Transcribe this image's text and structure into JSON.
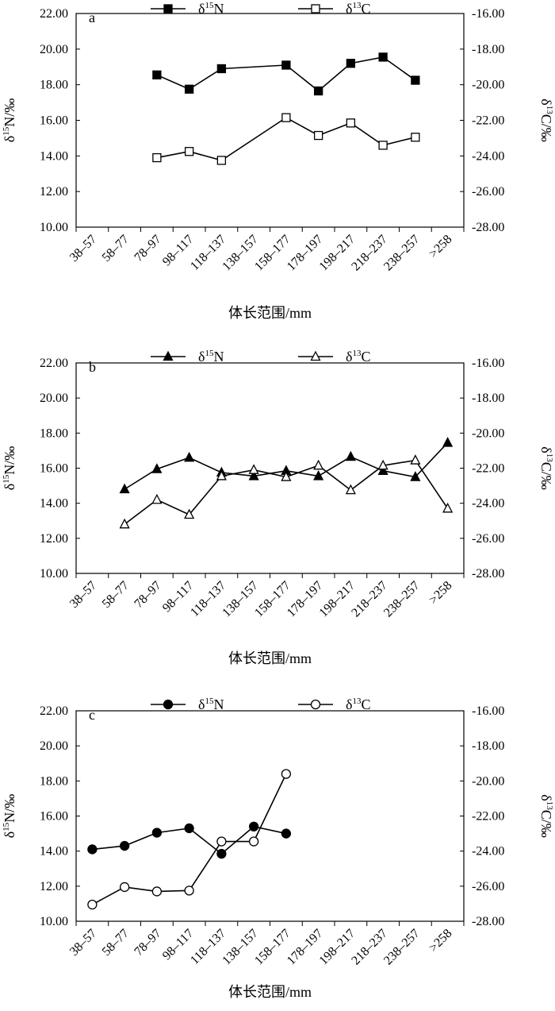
{
  "chart_data": [
    {
      "panel": "a",
      "type": "line",
      "categories": [
        "38–57",
        "58–77",
        "78–97",
        "98–117",
        "118–137",
        "138–157",
        "158–177",
        "178–197",
        "198–217",
        "218–237",
        "238–257",
        ">258"
      ],
      "xlabel": "体长范围/mm",
      "ylabel_left": {
        "symbol": "δ",
        "sup": "15",
        "rest": "N/‰"
      },
      "ylabel_right": {
        "symbol": "δ",
        "sup": "13",
        "rest": "C/‰"
      },
      "ylim_left": [
        10,
        22
      ],
      "ylim_right": [
        -28,
        -16
      ],
      "yticks_left": [
        "10.00",
        "12.00",
        "14.00",
        "16.00",
        "18.00",
        "20.00",
        "22.00"
      ],
      "yticks_right": [
        "-28.00",
        "-26.00",
        "-24.00",
        "-22.00",
        "-20.00",
        "-18.00",
        "-16.00"
      ],
      "legend_position": "top",
      "series": [
        {
          "name": "δ15N",
          "label": {
            "symbol": "δ",
            "sup": "15",
            "rest": "N"
          },
          "axis": "left",
          "marker": "square",
          "filled": true,
          "x": [
            "78–97",
            "98–117",
            "118–137",
            "158–177",
            "178–197",
            "198–217",
            "218–237",
            "238–257"
          ],
          "values": [
            18.55,
            17.75,
            18.9,
            19.1,
            17.65,
            19.2,
            19.55,
            18.25
          ]
        },
        {
          "name": "δ13C",
          "label": {
            "symbol": "δ",
            "sup": "13",
            "rest": "C"
          },
          "axis": "right",
          "marker": "square",
          "filled": false,
          "x": [
            "78–97",
            "98–117",
            "118–137",
            "158–177",
            "178–197",
            "198–217",
            "218–237",
            "238–257"
          ],
          "values": [
            -24.1,
            -23.75,
            -24.25,
            -21.85,
            -22.85,
            -22.15,
            -23.4,
            -22.95
          ]
        }
      ]
    },
    {
      "panel": "b",
      "type": "line",
      "categories": [
        "38–57",
        "58–77",
        "78–97",
        "98–117",
        "118–137",
        "138–157",
        "158–177",
        "178–197",
        "198–217",
        "218–237",
        "238–257",
        ">258"
      ],
      "xlabel": "体长范围/mm",
      "ylabel_left": {
        "symbol": "δ",
        "sup": "15",
        "rest": "N/‰"
      },
      "ylabel_right": {
        "symbol": "δ",
        "sup": "13",
        "rest": "C/‰"
      },
      "ylim_left": [
        10,
        22
      ],
      "ylim_right": [
        -28,
        -16
      ],
      "yticks_left": [
        "10.00",
        "12.00",
        "14.00",
        "16.00",
        "18.00",
        "20.00",
        "22.00"
      ],
      "yticks_right": [
        "-28.00",
        "-26.00",
        "-24.00",
        "-22.00",
        "-20.00",
        "-18.00",
        "-16.00"
      ],
      "legend_position": "top",
      "series": [
        {
          "name": "δ15N",
          "label": {
            "symbol": "δ",
            "sup": "15",
            "rest": "N"
          },
          "axis": "left",
          "marker": "triangle",
          "filled": true,
          "x": [
            "58–77",
            "78–97",
            "98–117",
            "118–137",
            "138–157",
            "158–177",
            "178–197",
            "198–217",
            "218–237",
            "238–257",
            ">258"
          ],
          "values": [
            14.8,
            15.95,
            16.6,
            15.75,
            15.55,
            15.85,
            15.55,
            16.65,
            15.85,
            15.5,
            17.45
          ]
        },
        {
          "name": "δ13C",
          "label": {
            "symbol": "δ",
            "sup": "13",
            "rest": "C"
          },
          "axis": "right",
          "marker": "triangle",
          "filled": false,
          "x": [
            "58–77",
            "78–97",
            "98–117",
            "118–137",
            "138–157",
            "158–177",
            "178–197",
            "198–217",
            "218–237",
            "238–257",
            ">258"
          ],
          "values": [
            -25.2,
            -23.8,
            -24.65,
            -22.45,
            -22.1,
            -22.5,
            -21.85,
            -23.25,
            -21.85,
            -21.55,
            -24.3
          ]
        }
      ]
    },
    {
      "panel": "c",
      "type": "line",
      "categories": [
        "38–57",
        "58–77",
        "78–97",
        "98–117",
        "118–137",
        "138–157",
        "158–177",
        "178–197",
        "198–217",
        "218–237",
        "238–257",
        ">258"
      ],
      "xlabel": "体长范围/mm",
      "ylabel_left": {
        "symbol": "δ",
        "sup": "15",
        "rest": "N/‰"
      },
      "ylabel_right": {
        "symbol": "δ",
        "sup": "13",
        "rest": "C/‰"
      },
      "ylim_left": [
        10,
        22
      ],
      "ylim_right": [
        -28,
        -16
      ],
      "yticks_left": [
        "10.00",
        "12.00",
        "14.00",
        "16.00",
        "18.00",
        "20.00",
        "22.00"
      ],
      "yticks_right": [
        "-28.00",
        "-26.00",
        "-24.00",
        "-22.00",
        "-20.00",
        "-18.00",
        "-16.00"
      ],
      "legend_position": "top",
      "series": [
        {
          "name": "δ15N",
          "label": {
            "symbol": "δ",
            "sup": "15",
            "rest": "N"
          },
          "axis": "left",
          "marker": "circle",
          "filled": true,
          "x": [
            "38–57",
            "58–77",
            "78–97",
            "98–117",
            "118–137",
            "138–157",
            "158–177"
          ],
          "values": [
            14.1,
            14.3,
            15.05,
            15.3,
            13.85,
            15.4,
            15.0
          ]
        },
        {
          "name": "δ13C",
          "label": {
            "symbol": "δ",
            "sup": "13",
            "rest": "C"
          },
          "axis": "right",
          "marker": "circle",
          "filled": false,
          "x": [
            "38–57",
            "58–77",
            "78–97",
            "98–117",
            "118–137",
            "138–157",
            "158–177"
          ],
          "values": [
            -27.05,
            -26.05,
            -26.3,
            -26.25,
            -23.45,
            -23.45,
            -19.6
          ]
        }
      ]
    }
  ]
}
